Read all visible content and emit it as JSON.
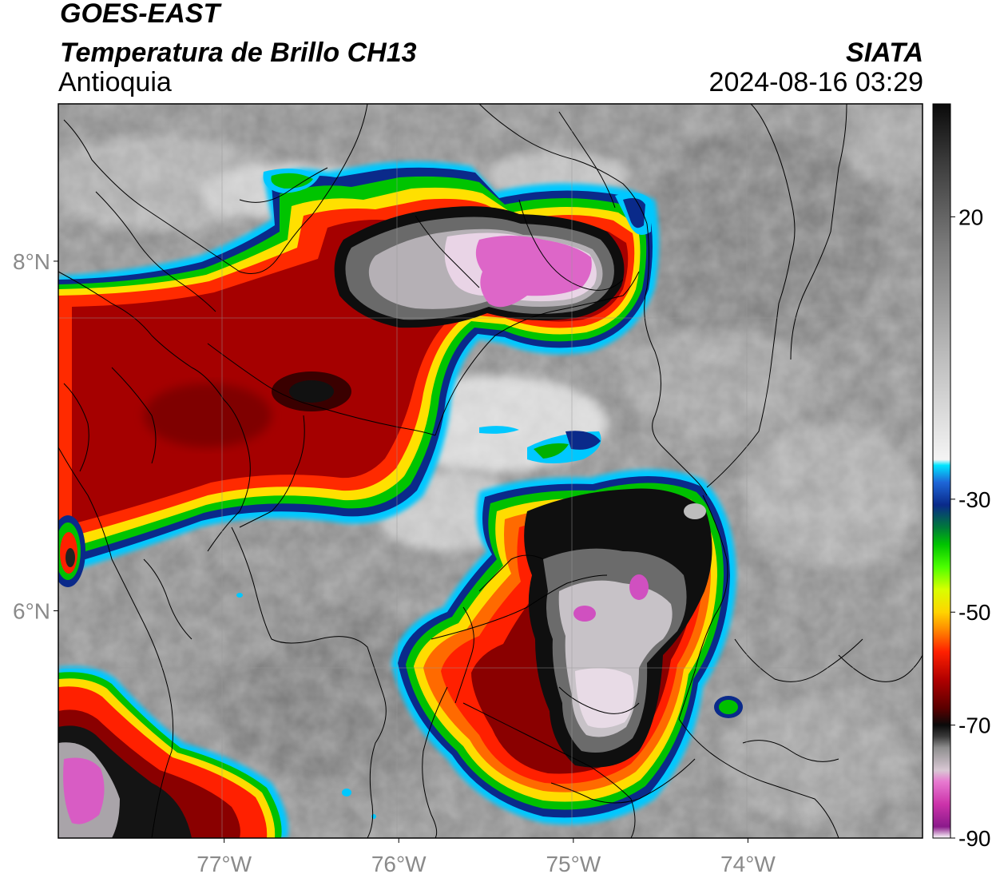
{
  "header": {
    "satellite": "GOES-EAST",
    "product": "Temperatura de Brillo CH13",
    "region": "Antioquia",
    "agency": "SIATA",
    "datetime": "2024-08-16 03:29"
  },
  "map": {
    "lon_range": [
      -77.95,
      -73.0
    ],
    "lat_range": [
      4.7,
      8.9
    ],
    "lon_ticks": [
      {
        "value": -77,
        "label": "77°W"
      },
      {
        "value": -76,
        "label": "76°W"
      },
      {
        "value": -75,
        "label": "75°W"
      },
      {
        "value": -74,
        "label": "74°W"
      }
    ],
    "lat_ticks": [
      {
        "value": 8,
        "label": "8°N"
      },
      {
        "value": 6,
        "label": "6°N"
      }
    ],
    "grid": true,
    "features": [
      "coastline",
      "country-borders",
      "department-borders",
      "municipality-borders"
    ],
    "cloud_systems": [
      {
        "name": "convective-cell-north",
        "lon": -75.1,
        "lat": 8.15,
        "min_temp_c": -88
      },
      {
        "name": "convective-cell-central",
        "lon": -74.8,
        "lat": 6.4,
        "min_temp_c": -88
      },
      {
        "name": "convective-cell-southwest",
        "lon": -77.7,
        "lat": 5.0,
        "min_temp_c": -88
      },
      {
        "name": "anvil-northwest",
        "lon": -76.9,
        "lat": 7.6,
        "min_temp_c": -70
      }
    ]
  },
  "colorbar": {
    "range": [
      -90,
      40
    ],
    "ticks": [
      {
        "value": 20,
        "label": "20"
      },
      {
        "value": -30,
        "label": "-30"
      },
      {
        "value": -50,
        "label": "-50"
      },
      {
        "value": -70,
        "label": "-70"
      },
      {
        "value": -90,
        "label": "-90"
      }
    ],
    "stops": [
      {
        "value": -90,
        "color": "#ffffff"
      },
      {
        "value": -88,
        "color": "#8b1a8b"
      },
      {
        "value": -84,
        "color": "#cc33aa"
      },
      {
        "value": -80,
        "color": "#e77ad0"
      },
      {
        "value": -78,
        "color": "#d9c8d4"
      },
      {
        "value": -74,
        "color": "#8e8e8e"
      },
      {
        "value": -72,
        "color": "#3a3a3a"
      },
      {
        "value": -70,
        "color": "#0a0a0a"
      },
      {
        "value": -67,
        "color": "#5a0000"
      },
      {
        "value": -62,
        "color": "#b00000"
      },
      {
        "value": -57,
        "color": "#ff2000"
      },
      {
        "value": -53,
        "color": "#ff8c00"
      },
      {
        "value": -50,
        "color": "#ffd400"
      },
      {
        "value": -46,
        "color": "#d8ff00"
      },
      {
        "value": -42,
        "color": "#4cff00"
      },
      {
        "value": -38,
        "color": "#00c400"
      },
      {
        "value": -35,
        "color": "#007a3a"
      },
      {
        "value": -31,
        "color": "#0a2a8a"
      },
      {
        "value": -27,
        "color": "#1e66d8"
      },
      {
        "value": -24,
        "color": "#00e5ff"
      },
      {
        "value": -23,
        "color": "#f4f4f4"
      },
      {
        "value": -5,
        "color": "#bdbdbd"
      },
      {
        "value": 15,
        "color": "#7a7a7a"
      },
      {
        "value": 30,
        "color": "#3a3a3a"
      },
      {
        "value": 40,
        "color": "#0a0a0a"
      }
    ]
  }
}
